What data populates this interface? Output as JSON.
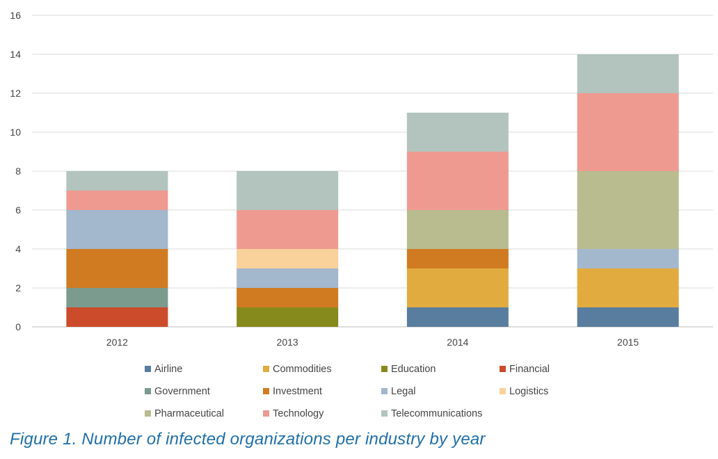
{
  "caption": "Figure 1. Number of infected organizations per industry by year",
  "chart_data": {
    "type": "bar",
    "stacked": true,
    "categories": [
      "2012",
      "2013",
      "2014",
      "2015"
    ],
    "ylim": [
      0,
      16
    ],
    "yticks": [
      0,
      2,
      4,
      6,
      8,
      10,
      12,
      14,
      16
    ],
    "grid": true,
    "legend_position": "bottom",
    "series": [
      {
        "name": "Airline",
        "color": "#587d9e",
        "values": [
          0,
          0,
          1,
          1
        ]
      },
      {
        "name": "Commodities",
        "color": "#e2ab3f",
        "values": [
          0,
          0,
          2,
          2
        ]
      },
      {
        "name": "Education",
        "color": "#86891c",
        "values": [
          0,
          1,
          0,
          0
        ]
      },
      {
        "name": "Financial",
        "color": "#cc4b2a",
        "values": [
          1,
          0,
          0,
          0
        ]
      },
      {
        "name": "Government",
        "color": "#7b9b8e",
        "values": [
          1,
          0,
          0,
          0
        ]
      },
      {
        "name": "Investment",
        "color": "#d07b22",
        "values": [
          2,
          1,
          1,
          0
        ]
      },
      {
        "name": "Legal",
        "color": "#a3b7cd",
        "values": [
          2,
          1,
          0,
          1
        ]
      },
      {
        "name": "Logistics",
        "color": "#f9d19a",
        "values": [
          0,
          1,
          0,
          0
        ]
      },
      {
        "name": "Pharmaceutical",
        "color": "#b8bc8f",
        "values": [
          0,
          0,
          2,
          4
        ]
      },
      {
        "name": "Technology",
        "color": "#ee9a91",
        "values": [
          1,
          2,
          3,
          4
        ]
      },
      {
        "name": "Telecommunications",
        "color": "#b2c4bd",
        "values": [
          1,
          2,
          2,
          2
        ]
      }
    ]
  }
}
